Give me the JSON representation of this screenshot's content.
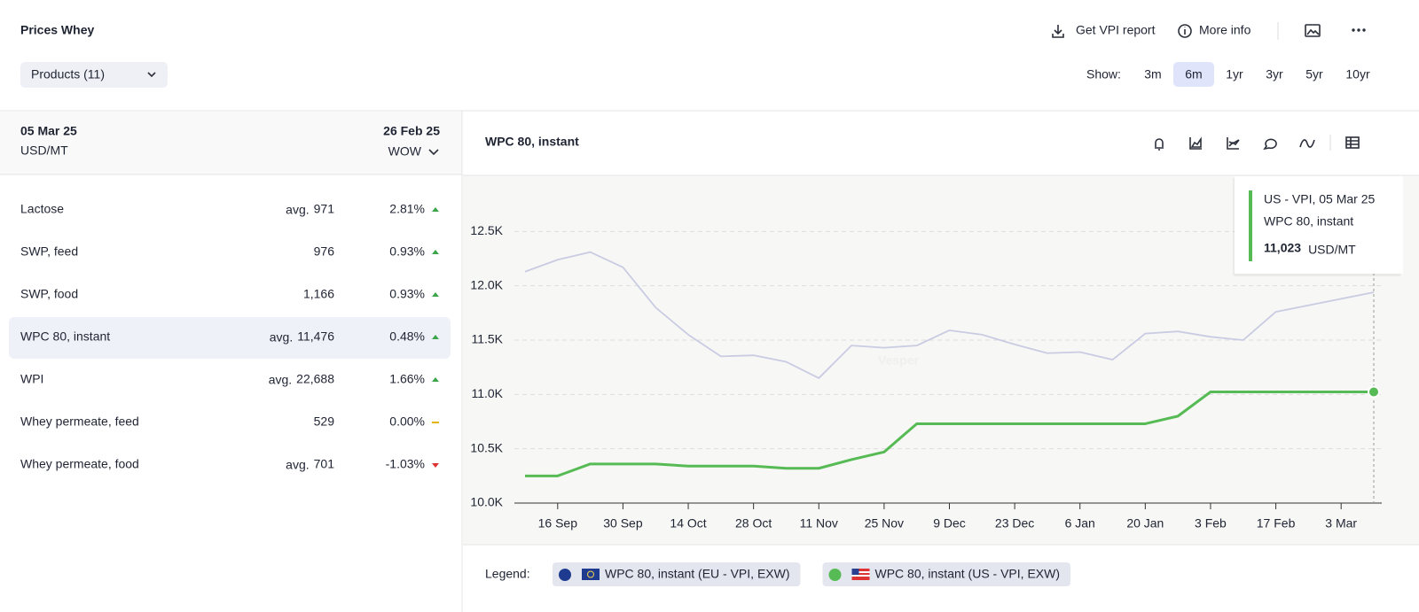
{
  "header": {
    "title": "Prices Whey",
    "actions": [
      "Get VPI report",
      "More info"
    ],
    "products": "Products (11)",
    "show_label": "Show:",
    "ranges": [
      "3m",
      "6m",
      "1yr",
      "3yr",
      "5yr",
      "10yr"
    ],
    "active_range": 1
  },
  "summary": {
    "date": "05 Mar 25",
    "unit": "USD/MT",
    "compare_date": "26 Feb 25",
    "compare_mode": "WOW",
    "selected": 3,
    "rows": [
      {
        "name": "Lactose",
        "avg": "avg.",
        "value": "971",
        "change": "2.81%",
        "trend": "up"
      },
      {
        "name": "SWP, feed",
        "value": "976",
        "change": "0.93%",
        "trend": "up"
      },
      {
        "name": "SWP, food",
        "value": "1,166",
        "change": "0.93%",
        "trend": "up"
      },
      {
        "name": "WPC 80, instant",
        "avg": "avg.",
        "value": "11,476",
        "change": "0.48%",
        "trend": "up"
      },
      {
        "name": "WPI",
        "avg": "avg.",
        "value": "22,688",
        "change": "1.66%",
        "trend": "up"
      },
      {
        "name": "Whey permeate, feed",
        "value": "529",
        "change": "0.00%",
        "trend": "flat"
      },
      {
        "name": "Whey permeate, food",
        "avg": "avg.",
        "value": "701",
        "change": "-1.03%",
        "trend": "down"
      }
    ]
  },
  "chart_panel": {
    "title": "WPC 80, instant",
    "tooltip": {
      "line1": "US - VPI, 05 Mar 25",
      "line2": "WPC 80, instant",
      "value": "11,023",
      "unit": "USD/MT"
    },
    "legend_label": "Legend:"
  },
  "chart_data": {
    "type": "line",
    "watermark": "Vesper",
    "categories": [
      null,
      "16 Sep",
      null,
      "30 Sep",
      null,
      "14 Oct",
      null,
      "28 Oct",
      null,
      "11 Nov",
      null,
      "25 Nov",
      null,
      "9 Dec",
      null,
      "23 Dec",
      null,
      "6 Jan",
      null,
      "20 Jan",
      null,
      "3 Feb",
      null,
      "17 Feb",
      null,
      "3 Mar",
      null
    ],
    "ylim": [
      10000,
      13000
    ],
    "yticks": [
      {
        "value": 10000,
        "label": "10.0K"
      },
      {
        "value": 10500,
        "label": "10.5K"
      },
      {
        "value": 11000,
        "label": "11.0K"
      },
      {
        "value": 11500,
        "label": "11.5K"
      },
      {
        "value": 12000,
        "label": "12.0K"
      },
      {
        "value": 12500,
        "label": "12.5K"
      }
    ],
    "grid": true,
    "series": [
      {
        "name": "WPC 80, instant (EU - VPI, EXW)",
        "color": "#c9cce2",
        "marker_color": "#1f3b8f",
        "values": [
          12130,
          12240,
          12310,
          12170,
          11800,
          11550,
          11350,
          11360,
          11300,
          11150,
          11450,
          11430,
          11450,
          11590,
          11550,
          11460,
          11380,
          11390,
          11320,
          11560,
          11580,
          11530,
          11500,
          11760,
          11820,
          11880,
          11940
        ]
      },
      {
        "name": "WPC 80, instant (US - VPI, EXW)",
        "color": "#57bb55",
        "marker_color": "#57bb55",
        "values": [
          10250,
          10250,
          10360,
          10360,
          10360,
          10340,
          10340,
          10340,
          10320,
          10320,
          10400,
          10470,
          10730,
          10730,
          10730,
          10730,
          10730,
          10730,
          10730,
          10730,
          10800,
          11023,
          11023,
          11023,
          11023,
          11023,
          11023
        ]
      }
    ]
  }
}
